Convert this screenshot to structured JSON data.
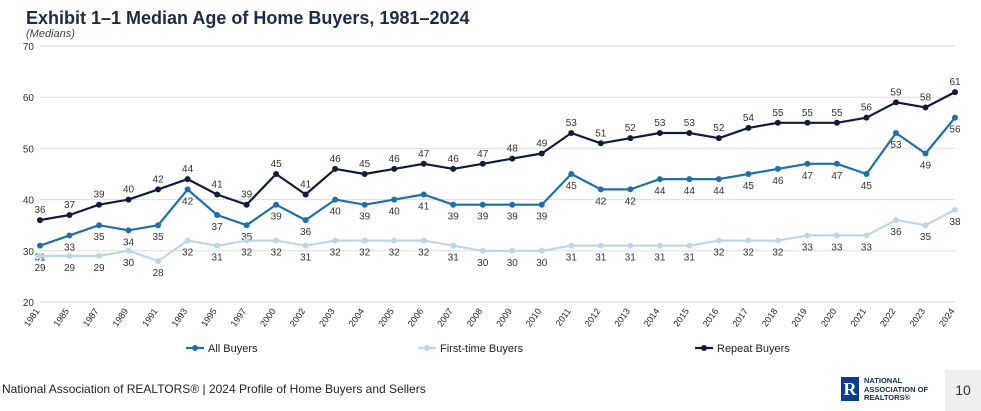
{
  "header": {
    "title": "Exhibit 1–1 Median Age of Home Buyers, 1981–2024",
    "subtitle": "(Medians)"
  },
  "footer": {
    "source": "National Association of REALTORS® | 2024 Profile of Home Buyers and Sellers",
    "logo_mark": "R",
    "logo_lines": [
      "NATIONAL",
      "ASSOCIATION OF",
      "REALTORS®"
    ],
    "page_number": "10"
  },
  "chart_data": {
    "type": "line",
    "title": "Exhibit 1–1 Median Age of Home Buyers, 1981–2024",
    "subtitle": "(Medians)",
    "xlabel": "",
    "ylabel": "",
    "ylim": [
      20,
      70
    ],
    "yticks": [
      20,
      30,
      40,
      50,
      60,
      70
    ],
    "grid": true,
    "legend": "bottom",
    "x": [
      "1981",
      "1985",
      "1987",
      "1989",
      "1991",
      "1993",
      "1995",
      "1997",
      "2000",
      "2002",
      "2003",
      "2004",
      "2005",
      "2006",
      "2007",
      "2008",
      "2009",
      "2010",
      "2011",
      "2012",
      "2013",
      "2014",
      "2015",
      "2016",
      "2017",
      "2018",
      "2019",
      "2020",
      "2021",
      "2022",
      "2023",
      "2024"
    ],
    "series": [
      {
        "name": "All Buyers",
        "color": "#1f6fa8",
        "label_pos": "below",
        "values": [
          31,
          33,
          35,
          34,
          35,
          42,
          37,
          35,
          39,
          36,
          40,
          39,
          40,
          41,
          39,
          39,
          39,
          39,
          45,
          42,
          42,
          44,
          44,
          44,
          45,
          46,
          47,
          47,
          45,
          53,
          49,
          56
        ]
      },
      {
        "name": "First-time Buyers",
        "color": "#bcd8e8",
        "label_pos": "below",
        "values": [
          29,
          29,
          29,
          30,
          28,
          32,
          31,
          32,
          32,
          31,
          32,
          32,
          32,
          32,
          31,
          30,
          30,
          30,
          31,
          31,
          31,
          31,
          31,
          32,
          32,
          32,
          33,
          33,
          33,
          36,
          35,
          38
        ]
      },
      {
        "name": "Repeat Buyers",
        "color": "#101c3a",
        "label_pos": "above",
        "values": [
          36,
          37,
          39,
          40,
          42,
          44,
          41,
          39,
          45,
          41,
          46,
          45,
          46,
          47,
          46,
          47,
          48,
          49,
          53,
          51,
          52,
          53,
          53,
          52,
          54,
          55,
          55,
          55,
          56,
          59,
          58,
          61
        ]
      }
    ]
  }
}
